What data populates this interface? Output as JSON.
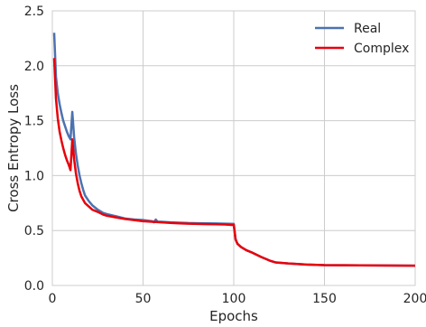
{
  "chart_data": {
    "type": "line",
    "xlabel": "Epochs",
    "ylabel": "Cross Entropy Loss",
    "xlim": [
      0,
      200
    ],
    "ylim": [
      0.0,
      2.5
    ],
    "x_ticks": [
      0,
      50,
      100,
      150,
      200
    ],
    "y_ticks": [
      0.0,
      0.5,
      1.0,
      1.5,
      2.0,
      2.5
    ],
    "x_tick_labels": [
      "0",
      "50",
      "100",
      "150",
      "200"
    ],
    "y_tick_labels": [
      "0.0",
      "0.5",
      "1.0",
      "1.5",
      "2.0",
      "2.5"
    ],
    "grid": true,
    "legend_position": "top-right",
    "series": [
      {
        "name": "Real",
        "color": "#4c72b0",
        "points": [
          [
            1,
            2.3
          ],
          [
            2,
            1.9
          ],
          [
            3,
            1.75
          ],
          [
            4,
            1.65
          ],
          [
            5,
            1.57
          ],
          [
            6,
            1.5
          ],
          [
            7,
            1.45
          ],
          [
            8,
            1.4
          ],
          [
            9,
            1.36
          ],
          [
            10,
            1.33
          ],
          [
            11,
            1.58
          ],
          [
            12,
            1.35
          ],
          [
            13,
            1.2
          ],
          [
            14,
            1.09
          ],
          [
            15,
            1.0
          ],
          [
            16,
            0.93
          ],
          [
            17,
            0.87
          ],
          [
            18,
            0.82
          ],
          [
            20,
            0.77
          ],
          [
            22,
            0.73
          ],
          [
            25,
            0.69
          ],
          [
            28,
            0.66
          ],
          [
            30,
            0.65
          ],
          [
            35,
            0.63
          ],
          [
            40,
            0.61
          ],
          [
            45,
            0.6
          ],
          [
            50,
            0.595
          ],
          [
            55,
            0.585
          ],
          [
            56,
            0.575
          ],
          [
            57,
            0.6
          ],
          [
            58,
            0.58
          ],
          [
            60,
            0.58
          ],
          [
            65,
            0.575
          ],
          [
            70,
            0.572
          ],
          [
            75,
            0.568
          ],
          [
            80,
            0.566
          ],
          [
            85,
            0.565
          ],
          [
            90,
            0.564
          ],
          [
            95,
            0.562
          ],
          [
            100,
            0.56
          ],
          [
            101,
            0.42
          ],
          [
            102,
            0.38
          ],
          [
            104,
            0.35
          ],
          [
            107,
            0.32
          ],
          [
            110,
            0.3
          ],
          [
            115,
            0.26
          ],
          [
            120,
            0.225
          ],
          [
            123,
            0.21
          ],
          [
            130,
            0.2
          ],
          [
            140,
            0.19
          ],
          [
            150,
            0.185
          ],
          [
            160,
            0.184
          ],
          [
            170,
            0.183
          ],
          [
            180,
            0.182
          ],
          [
            190,
            0.181
          ],
          [
            200,
            0.18
          ]
        ]
      },
      {
        "name": "Complex",
        "color": "#e8000b",
        "points": [
          [
            1,
            2.07
          ],
          [
            2,
            1.7
          ],
          [
            3,
            1.52
          ],
          [
            4,
            1.4
          ],
          [
            5,
            1.32
          ],
          [
            6,
            1.25
          ],
          [
            7,
            1.19
          ],
          [
            8,
            1.14
          ],
          [
            9,
            1.1
          ],
          [
            10,
            1.05
          ],
          [
            11,
            1.33
          ],
          [
            12,
            1.15
          ],
          [
            13,
            1.02
          ],
          [
            14,
            0.93
          ],
          [
            15,
            0.86
          ],
          [
            16,
            0.81
          ],
          [
            17,
            0.78
          ],
          [
            18,
            0.75
          ],
          [
            20,
            0.72
          ],
          [
            22,
            0.69
          ],
          [
            25,
            0.67
          ],
          [
            28,
            0.645
          ],
          [
            30,
            0.635
          ],
          [
            35,
            0.62
          ],
          [
            40,
            0.605
          ],
          [
            45,
            0.595
          ],
          [
            50,
            0.585
          ],
          [
            55,
            0.58
          ],
          [
            60,
            0.575
          ],
          [
            65,
            0.57
          ],
          [
            70,
            0.565
          ],
          [
            75,
            0.562
          ],
          [
            80,
            0.56
          ],
          [
            85,
            0.558
          ],
          [
            90,
            0.557
          ],
          [
            95,
            0.555
          ],
          [
            100,
            0.55
          ],
          [
            101,
            0.42
          ],
          [
            102,
            0.38
          ],
          [
            104,
            0.35
          ],
          [
            107,
            0.32
          ],
          [
            110,
            0.3
          ],
          [
            115,
            0.26
          ],
          [
            120,
            0.225
          ],
          [
            123,
            0.21
          ],
          [
            130,
            0.2
          ],
          [
            140,
            0.19
          ],
          [
            150,
            0.185
          ],
          [
            160,
            0.184
          ],
          [
            170,
            0.183
          ],
          [
            180,
            0.182
          ],
          [
            190,
            0.181
          ],
          [
            200,
            0.18
          ]
        ]
      }
    ]
  }
}
